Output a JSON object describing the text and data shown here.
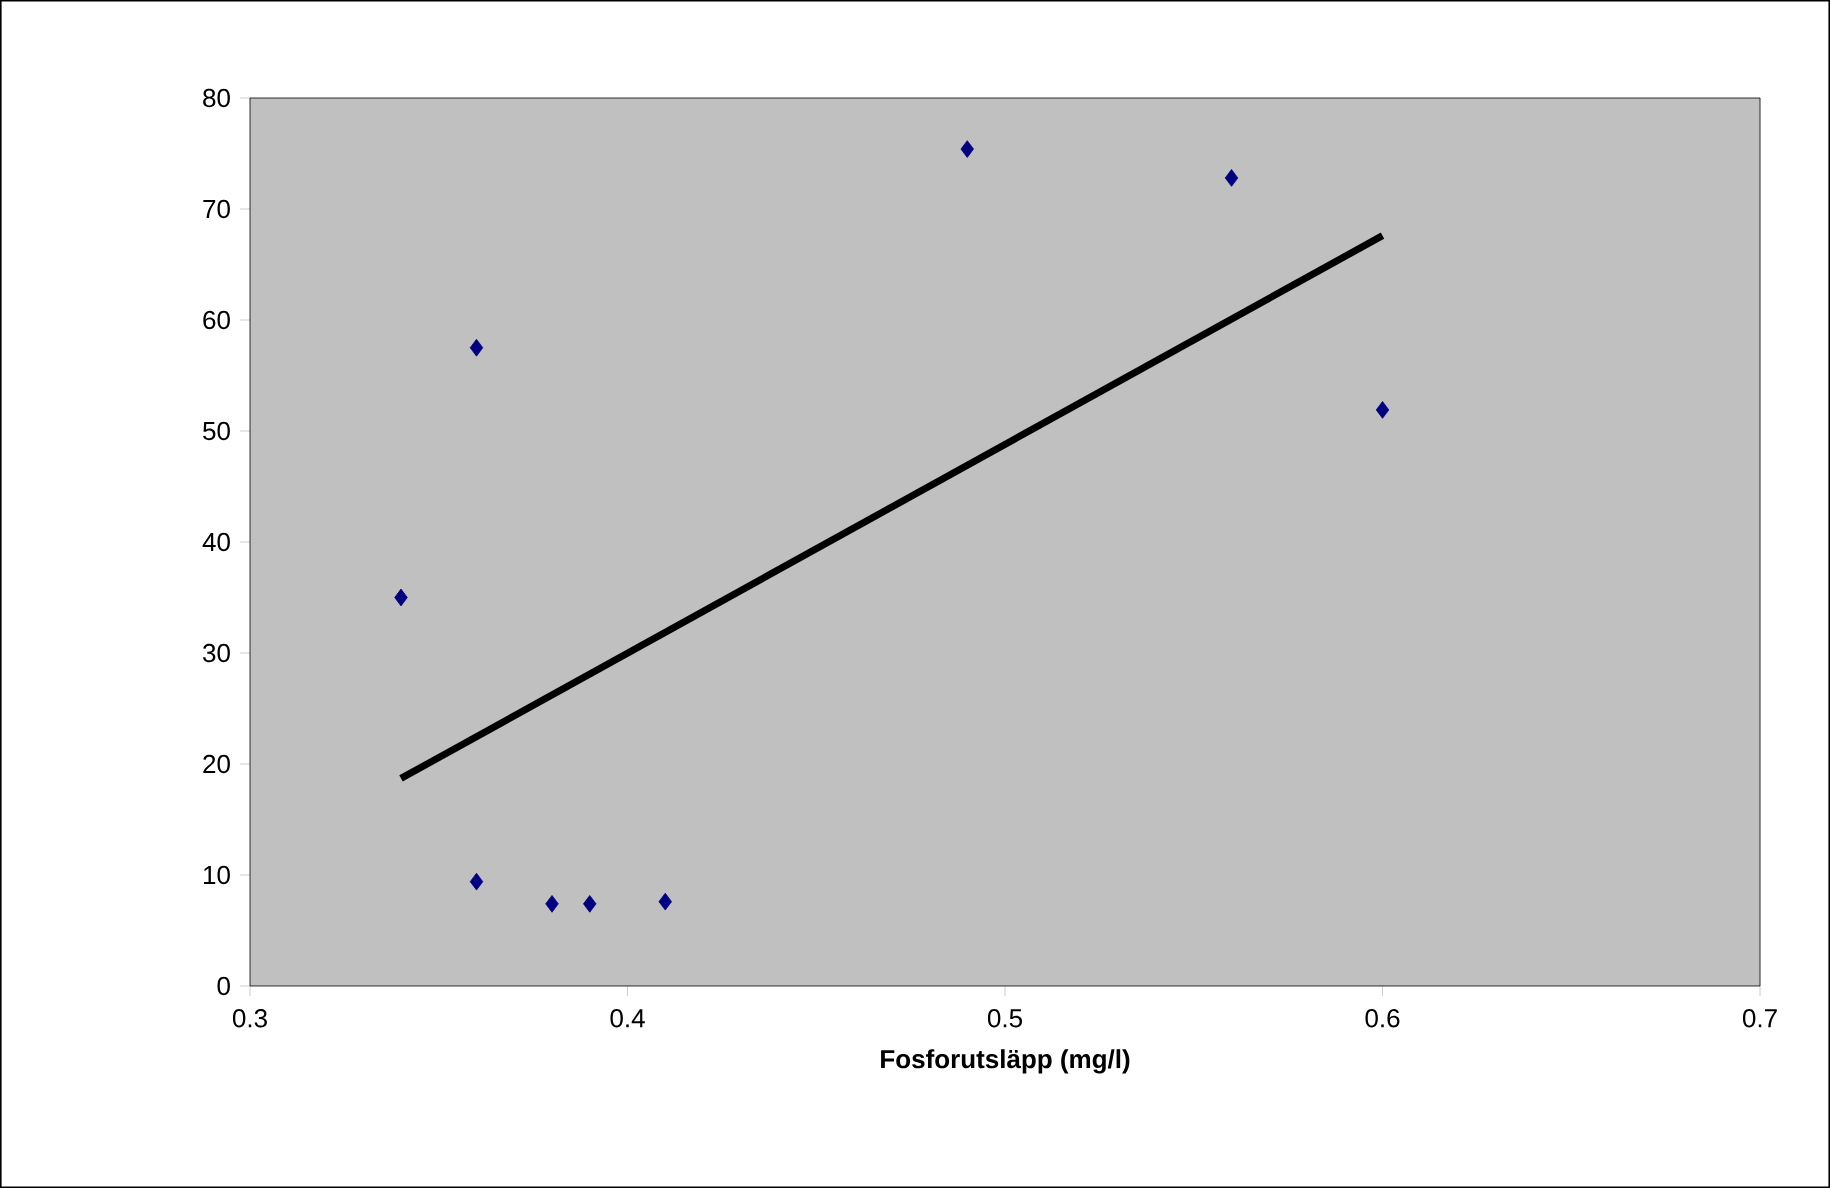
{
  "chart_data": {
    "type": "scatter",
    "xlabel": "Fosforutsläpp (mg/l)",
    "xlim": [
      0.3,
      0.7
    ],
    "xticks": [
      0.3,
      0.4,
      0.5,
      0.6,
      0.7
    ],
    "ylim": [
      0,
      80
    ],
    "yticks": [
      0,
      10,
      20,
      30,
      40,
      50,
      60,
      70,
      80
    ],
    "series": [
      {
        "color": "#000080",
        "marker": "diamond",
        "x": [
          0.34,
          0.36,
          0.36,
          0.38,
          0.39,
          0.41,
          0.49,
          0.56,
          0.6
        ],
        "values": [
          35,
          57.5,
          9.4,
          7.4,
          7.4,
          7.6,
          75.4,
          72.8,
          51.9
        ]
      },
      {
        "type": "line",
        "marker": "none",
        "color": "#000000",
        "x": [
          0.34,
          0.6
        ],
        "values": [
          18.7,
          67.6
        ]
      }
    ]
  }
}
